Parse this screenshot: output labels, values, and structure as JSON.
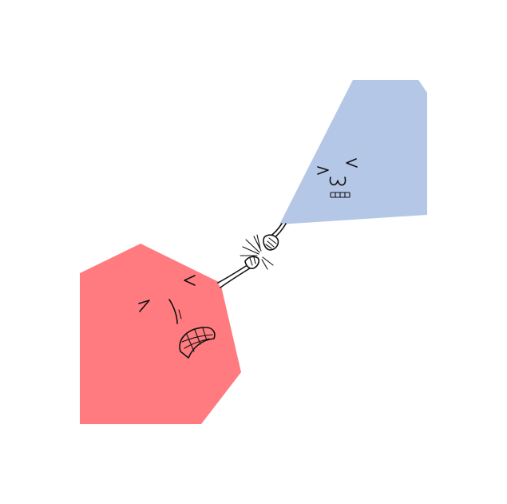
{
  "scene": {
    "description_text": "",
    "background_color": "#ffffff"
  },
  "characters": [
    {
      "id": "red-heptagon",
      "shape": "heptagon",
      "color": "#ff7b7f",
      "expression": "angry-gritted-teeth"
    },
    {
      "id": "blue-quadrilateral",
      "shape": "polygon",
      "color": "#b4c7e7",
      "expression": "squinting-smug"
    }
  ],
  "action": {
    "icon": "fist-bump-spark-icon",
    "ink_color": "#111111"
  }
}
